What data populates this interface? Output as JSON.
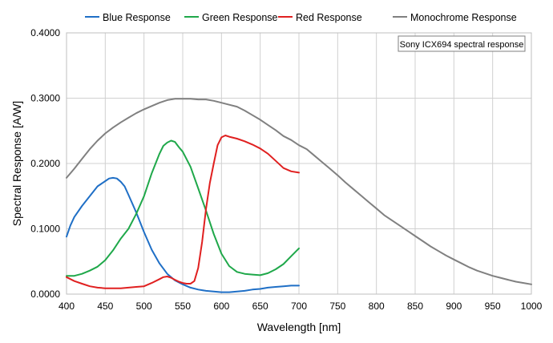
{
  "chart_data": {
    "type": "line",
    "title": "",
    "xlabel": "Wavelength [nm]",
    "ylabel": "Spectral Response [A/W]",
    "xlim": [
      400,
      1000
    ],
    "ylim": [
      0,
      0.4
    ],
    "xticks": [
      400,
      450,
      500,
      550,
      600,
      650,
      700,
      750,
      800,
      850,
      900,
      950,
      1000
    ],
    "xtick_labels": [
      "400",
      "450",
      "500",
      "550",
      "600",
      "650",
      "700",
      "750",
      "800",
      "850",
      "900",
      "950",
      "1000"
    ],
    "yticks": [
      0,
      0.1,
      0.2,
      0.3,
      0.4
    ],
    "ytick_labels": [
      "0.0000",
      "0.1000",
      "0.2000",
      "0.3000",
      "0.4000"
    ],
    "grid": true,
    "legend_position": "top",
    "annotation": "Sony ICX694 spectral response",
    "series": [
      {
        "name": "Blue Response",
        "color": "#1f6fc6",
        "x": [
          400,
          405,
          410,
          420,
          430,
          440,
          450,
          455,
          460,
          465,
          470,
          475,
          480,
          490,
          500,
          510,
          520,
          530,
          540,
          550,
          560,
          570,
          580,
          590,
          600,
          610,
          620,
          630,
          640,
          650,
          660,
          670,
          680,
          690,
          700
        ],
        "y": [
          0.088,
          0.105,
          0.118,
          0.135,
          0.15,
          0.165,
          0.173,
          0.177,
          0.178,
          0.177,
          0.172,
          0.165,
          0.152,
          0.125,
          0.095,
          0.068,
          0.047,
          0.031,
          0.021,
          0.015,
          0.01,
          0.007,
          0.005,
          0.004,
          0.003,
          0.003,
          0.004,
          0.005,
          0.007,
          0.008,
          0.01,
          0.011,
          0.012,
          0.013,
          0.013
        ]
      },
      {
        "name": "Green Response",
        "color": "#1fa84a",
        "x": [
          400,
          410,
          420,
          430,
          440,
          450,
          460,
          470,
          480,
          490,
          500,
          510,
          520,
          525,
          530,
          535,
          540,
          545,
          550,
          560,
          570,
          580,
          590,
          600,
          610,
          620,
          630,
          640,
          650,
          660,
          670,
          680,
          690,
          700
        ],
        "y": [
          0.028,
          0.028,
          0.031,
          0.036,
          0.042,
          0.052,
          0.067,
          0.085,
          0.1,
          0.123,
          0.15,
          0.185,
          0.215,
          0.227,
          0.232,
          0.235,
          0.233,
          0.225,
          0.218,
          0.195,
          0.162,
          0.128,
          0.092,
          0.062,
          0.043,
          0.034,
          0.031,
          0.03,
          0.029,
          0.032,
          0.038,
          0.046,
          0.058,
          0.07
        ]
      },
      {
        "name": "Red Response",
        "color": "#e02020",
        "x": [
          400,
          410,
          420,
          430,
          440,
          450,
          460,
          470,
          480,
          490,
          500,
          510,
          520,
          525,
          530,
          535,
          540,
          545,
          550,
          555,
          560,
          565,
          570,
          575,
          580,
          585,
          590,
          595,
          600,
          605,
          610,
          620,
          630,
          640,
          650,
          660,
          670,
          680,
          690,
          700
        ],
        "y": [
          0.026,
          0.02,
          0.016,
          0.012,
          0.01,
          0.009,
          0.009,
          0.009,
          0.01,
          0.011,
          0.012,
          0.017,
          0.023,
          0.026,
          0.027,
          0.025,
          0.022,
          0.019,
          0.017,
          0.016,
          0.016,
          0.02,
          0.04,
          0.08,
          0.13,
          0.17,
          0.2,
          0.228,
          0.24,
          0.243,
          0.241,
          0.238,
          0.234,
          0.229,
          0.223,
          0.215,
          0.204,
          0.193,
          0.188,
          0.186
        ]
      },
      {
        "name": "Monochrome Response",
        "color": "#808080",
        "x": [
          400,
          410,
          420,
          430,
          440,
          450,
          460,
          470,
          480,
          490,
          500,
          510,
          520,
          530,
          540,
          550,
          560,
          570,
          580,
          590,
          600,
          610,
          620,
          630,
          640,
          650,
          660,
          670,
          680,
          690,
          700,
          710,
          720,
          730,
          740,
          750,
          760,
          770,
          780,
          790,
          800,
          810,
          820,
          830,
          840,
          850,
          860,
          870,
          880,
          890,
          900,
          910,
          920,
          930,
          940,
          950,
          960,
          970,
          980,
          990,
          1000
        ],
        "y": [
          0.178,
          0.192,
          0.207,
          0.222,
          0.235,
          0.246,
          0.255,
          0.263,
          0.27,
          0.277,
          0.283,
          0.288,
          0.293,
          0.297,
          0.299,
          0.299,
          0.299,
          0.298,
          0.298,
          0.296,
          0.293,
          0.29,
          0.287,
          0.281,
          0.274,
          0.267,
          0.259,
          0.251,
          0.242,
          0.236,
          0.228,
          0.222,
          0.212,
          0.202,
          0.192,
          0.182,
          0.171,
          0.161,
          0.151,
          0.141,
          0.131,
          0.121,
          0.113,
          0.105,
          0.097,
          0.089,
          0.081,
          0.073,
          0.066,
          0.059,
          0.053,
          0.047,
          0.041,
          0.036,
          0.032,
          0.028,
          0.025,
          0.022,
          0.019,
          0.017,
          0.015
        ]
      }
    ]
  }
}
